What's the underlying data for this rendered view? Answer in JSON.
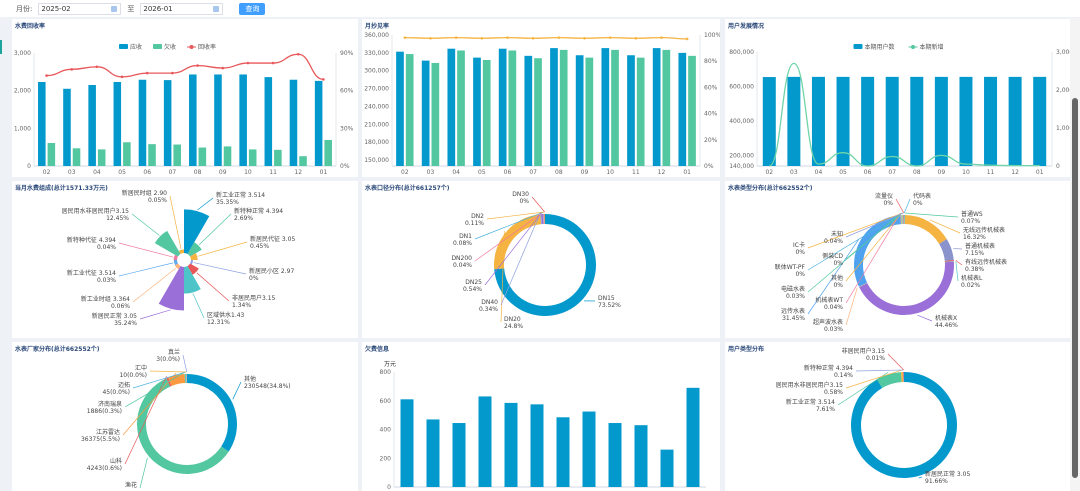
{
  "toolbar": {
    "month_label": "月份:",
    "start": "2025-02",
    "to": "至",
    "end": "2026-01",
    "query": "查询"
  },
  "months": [
    "02",
    "03",
    "04",
    "05",
    "06",
    "07",
    "08",
    "09",
    "10",
    "11",
    "12",
    "01"
  ],
  "colors": {
    "blue": "#0399cc",
    "green": "#52c7a0",
    "red": "#e8585a",
    "orange": "#f5b342",
    "accent": "#409eff"
  },
  "panels": {
    "recovery": {
      "title": "水费回收率",
      "legend": [
        "应收",
        "欠收",
        "回收率"
      ],
      "yl": [
        "0",
        "1,000",
        "2,000",
        "3,000"
      ],
      "yr": [
        "0%",
        "30%",
        "60%",
        "90%"
      ],
      "chart_data": {
        "type": "bar",
        "ylim": [
          0,
          3000
        ],
        "y2lim": [
          0,
          90
        ],
        "series": [
          {
            "name": "应收",
            "values": [
              2230,
              2050,
              2150,
              2230,
              2290,
              2280,
              2430,
              2430,
              2430,
              2360,
              2290,
              2260
            ]
          },
          {
            "name": "欠收",
            "values": [
              610,
              470,
              440,
              630,
              580,
              570,
              490,
              520,
              440,
              430,
              260,
              690
            ]
          },
          {
            "name": "回收率",
            "type": "line",
            "values": [
              72,
              77,
              79,
              71,
              74,
              74,
              80,
              78,
              82,
              82,
              89,
              69
            ]
          }
        ]
      }
    },
    "reading": {
      "title": "月抄见率",
      "yl": [
        "150,000",
        "180,000",
        "210,000",
        "240,000",
        "270,000",
        "300,000",
        "330,000",
        "360,000"
      ],
      "yr": [
        "0%",
        "20%",
        "40%",
        "60%",
        "80%",
        "100%"
      ],
      "chart_data": {
        "type": "bar",
        "ylim": [
          140000,
          360000
        ],
        "y2lim": [
          0,
          100
        ],
        "series": [
          {
            "values": [
              332000,
              317000,
              337000,
              322000,
              337000,
              325000,
              338000,
              326000,
              338000,
              326000,
              338000,
              330000
            ]
          },
          {
            "values": [
              328000,
              313000,
              334000,
              318000,
              334000,
              321000,
              335000,
              322000,
              335000,
              322000,
              335000,
              325000
            ]
          },
          {
            "type": "line",
            "values": [
              98,
              97.5,
              98,
              97.5,
              98,
              97.5,
              98,
              97.5,
              98,
              97.5,
              98,
              97
            ]
          }
        ]
      }
    },
    "users": {
      "title": "用户发展情况",
      "legend": [
        "本期用户数",
        "本期新增"
      ],
      "yl": [
        "140,000",
        "200,000",
        "400,000",
        "600,000",
        "800,000"
      ],
      "yr": [
        "0",
        "1,000",
        "2,000",
        "3,000"
      ],
      "chart_data": {
        "type": "bar",
        "ylim": [
          140000,
          800000
        ],
        "y2lim": [
          0,
          3000
        ],
        "series": [
          {
            "name": "本期用户数",
            "values": [
              655000,
              656000,
              656000,
              656000,
              656000,
              656000,
              656000,
              656000,
              656000,
              656000,
              656000,
              656000
            ]
          },
          {
            "name": "本期新增",
            "type": "line",
            "values": [
              0,
              2700,
              50,
              350,
              0,
              250,
              0,
              280,
              50,
              20,
              10,
              10
            ]
          }
        ]
      }
    },
    "fee": {
      "title": "当月水费组成(总计1571.33万元)",
      "chart_data": {
        "type": "pie",
        "items": [
          {
            "name": "新工业正常 3.514",
            "pct": "35.35%",
            "value": 35.35,
            "color": "#0399cc"
          },
          {
            "name": "新特种正常 4.394",
            "pct": "2.69%",
            "value": 2.69,
            "color": "#52c7a0"
          },
          {
            "name": "新居民代征 3.05",
            "pct": "0.45%",
            "value": 0.45,
            "color": "#f5b342"
          },
          {
            "name": "新居民小区 2.97",
            "pct": "0%",
            "value": 0,
            "color": "#8fa0e0"
          },
          {
            "name": "非居民用户3.15",
            "pct": "1.34%",
            "value": 1.34,
            "color": "#e8585a"
          },
          {
            "name": "区域供水1.43",
            "pct": "12.31%",
            "value": 12.31,
            "color": "#4dc4c8"
          },
          {
            "name": "新居民正常 3.05",
            "pct": "35.24%",
            "value": 35.24,
            "color": "#9a6fd8"
          },
          {
            "name": "新工业时组 3.364",
            "pct": "0.06%",
            "value": 0.06,
            "color": "#fdb37a"
          },
          {
            "name": "新工业代征 3.514",
            "pct": "0.03%",
            "value": 0.03,
            "color": "#5fa9f0"
          },
          {
            "name": "新特种代征 4.394",
            "pct": "0.04%",
            "value": 0.04,
            "color": "#f07aa0"
          },
          {
            "name": "居民用水非居民用户3.15",
            "pct": "12.45%",
            "value": 12.45,
            "color": "#52c7a0"
          },
          {
            "name": "新居民时组 2.90",
            "pct": "0.05%",
            "value": 0.05,
            "color": "#f5b342"
          }
        ]
      }
    },
    "caliber": {
      "title": "水表口径分布(总计661257个)",
      "chart_data": {
        "type": "pie",
        "items": [
          {
            "name": "DN15",
            "pct": "73.52%",
            "value": 73.52,
            "color": "#0399cc"
          },
          {
            "name": "DN20",
            "pct": "24.8%",
            "value": 24.8,
            "color": "#f5b342"
          },
          {
            "name": "DN40",
            "pct": "0.34%",
            "value": 0.34,
            "color": "#8fa0e0"
          },
          {
            "name": "DN25",
            "pct": "0.54%",
            "value": 0.54,
            "color": "#9a6fd8"
          },
          {
            "name": "DN200",
            "pct": "0.04%",
            "value": 0.04,
            "color": "#f07aa0"
          },
          {
            "name": "DN1",
            "pct": "0.08%",
            "value": 0.08,
            "color": "#4db3e0"
          },
          {
            "name": "DN2",
            "pct": "0.11%",
            "value": 0.11,
            "color": "#f5b342"
          },
          {
            "name": "DN30",
            "pct": "0%",
            "value": 0,
            "color": "#e8585a"
          }
        ]
      }
    },
    "metertype": {
      "title": "水表类型分布(总计662552个)",
      "chart_data": {
        "type": "pie",
        "items": [
          {
            "name": "代码表",
            "pct": "0%",
            "value": 0,
            "color": "#4db3e0"
          },
          {
            "name": "普通WS",
            "pct": "0.07%",
            "value": 0.07,
            "color": "#52c7a0"
          },
          {
            "name": "无线远传机械表",
            "pct": "16.32%",
            "value": 16.32,
            "color": "#f5b342"
          },
          {
            "name": "普通机械表",
            "pct": "7.15%",
            "value": 7.15,
            "color": "#8a93cc"
          },
          {
            "name": "有线远传机械表",
            "pct": "0.38%",
            "value": 0.38,
            "color": "#e8585a"
          },
          {
            "name": "机械表L",
            "pct": "0.02%",
            "value": 0.02,
            "color": "#4dc4c8"
          },
          {
            "name": "机械表X",
            "pct": "44.46%",
            "value": 44.46,
            "color": "#9a6fd8"
          },
          {
            "name": "超声波水表",
            "pct": "0.03%",
            "value": 0.03,
            "color": "#fdb37a"
          },
          {
            "name": "远传水表",
            "pct": "31.45%",
            "value": 31.45,
            "color": "#4fa3ee"
          },
          {
            "name": "机械表WT",
            "pct": "0.04%",
            "value": 0.04,
            "color": "#f07aa0"
          },
          {
            "name": "电磁水表",
            "pct": "0.03%",
            "value": 0.03,
            "color": "#52c7a0"
          },
          {
            "name": "其他",
            "pct": "0%",
            "value": 0,
            "color": "#f5b342"
          },
          {
            "name": "联体WT-PF",
            "pct": "0%",
            "value": 0,
            "color": "#4db3e0"
          },
          {
            "name": "侧装CD",
            "pct": "0%",
            "value": 0,
            "color": "#52c7a0"
          },
          {
            "name": "IC卡",
            "pct": "0%",
            "value": 0,
            "color": "#f5b342"
          },
          {
            "name": "未知",
            "pct": "0.04%",
            "value": 0.04,
            "color": "#8fa0e0"
          },
          {
            "name": "流量仪",
            "pct": "0%",
            "value": 0,
            "color": "#e8585a"
          }
        ]
      }
    },
    "maker": {
      "title": "水表厂家分布(总计662552个)",
      "chart_data": {
        "type": "pie",
        "items": [
          {
            "name": "其他",
            "pct": "230548(34.8%)",
            "value": 34.8,
            "color": "#0399cc"
          },
          {
            "name": "渔花",
            "pct": "",
            "value": 59.9,
            "color": "#52c7a0"
          },
          {
            "name": "山科",
            "pct": "4243(0.6%)",
            "value": 0.6,
            "color": "#e8585a"
          },
          {
            "name": "江苏雷达",
            "pct": "36375(5.5%)",
            "value": 5.5,
            "color": "#fb9a40"
          },
          {
            "name": "济南瑞泉",
            "pct": "1886(0.3%)",
            "value": 0.3,
            "color": "#52c7a0"
          },
          {
            "name": "迈拓",
            "pct": "45(0.0%)",
            "value": 0.0,
            "color": "#4db3e0"
          },
          {
            "name": "汇中",
            "pct": "10(0.0%)",
            "value": 0.0,
            "color": "#f5b342"
          },
          {
            "name": "真兰",
            "pct": "3(0.0%)",
            "value": 0.0,
            "color": "#8fa0e0"
          }
        ]
      }
    },
    "arrears": {
      "title": "欠费信息",
      "unit": "万元",
      "yl": [
        "0",
        "200",
        "400",
        "600",
        "800"
      ],
      "chart_data": {
        "type": "bar",
        "ylim": [
          0,
          800
        ],
        "series": [
          {
            "values": [
              610,
              470,
              445,
              630,
              585,
              575,
              485,
              525,
              445,
              430,
              260,
              690
            ]
          }
        ]
      }
    },
    "usertype": {
      "title": "用户类型分布",
      "chart_data": {
        "type": "pie",
        "items": [
          {
            "name": "新居民正常 3.05",
            "pct": "91.66%",
            "value": 91.66,
            "color": "#0399cc"
          },
          {
            "name": "新工业正常 3.514",
            "pct": "7.61%",
            "value": 7.61,
            "color": "#52c7a0"
          },
          {
            "name": "居民用水非居民用户3.15",
            "pct": "0.58%",
            "value": 0.58,
            "color": "#f5b342"
          },
          {
            "name": "新特种正常 4.394",
            "pct": "0.14%",
            "value": 0.14,
            "color": "#8fa0e0"
          },
          {
            "name": "非居民用户3.15",
            "pct": "0.01%",
            "value": 0.01,
            "color": "#e8585a"
          }
        ]
      }
    }
  }
}
